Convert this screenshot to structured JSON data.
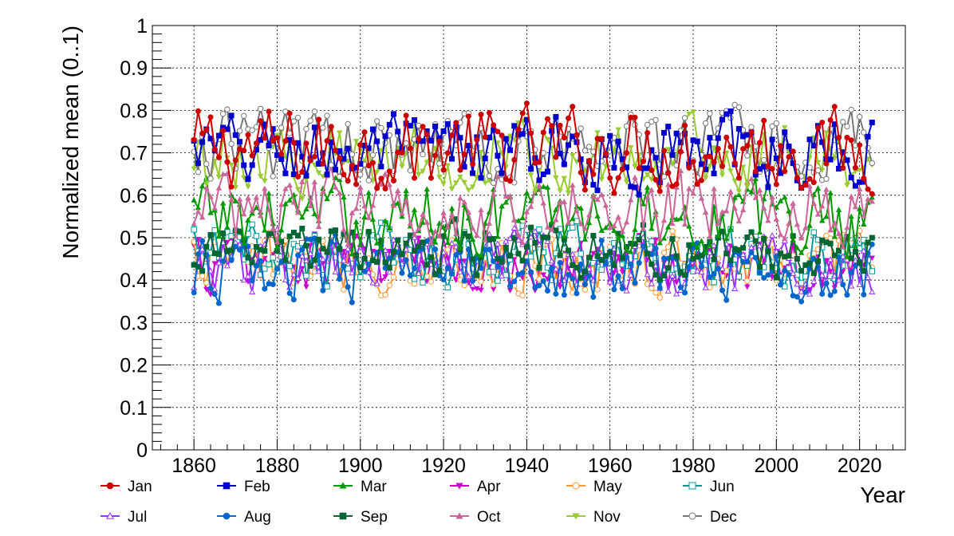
{
  "chart_data": {
    "type": "line",
    "title": "",
    "xlabel": "Year",
    "ylabel": "Normalized mean (0..1)",
    "xlim": [
      1850,
      2031
    ],
    "ylim": [
      0,
      1
    ],
    "x_start": 1860,
    "x_end": 2023,
    "x_ticks": [
      "1860",
      "1880",
      "1900",
      "1920",
      "1940",
      "1960",
      "1980",
      "2000",
      "2020"
    ],
    "y_ticks": [
      "0",
      "0.1",
      "0.2",
      "0.3",
      "0.4",
      "0.5",
      "0.6",
      "0.7",
      "0.8",
      "0.9",
      "1"
    ],
    "grid": true,
    "legend_placement": "bottom",
    "series": [
      {
        "name": "Jan",
        "color": "#cc0000",
        "marker": "circle-filled",
        "mean": 0.71,
        "amp": 0.08,
        "min": 0.5,
        "max": 0.85
      },
      {
        "name": "Feb",
        "color": "#0000cc",
        "marker": "square-filled",
        "mean": 0.7,
        "amp": 0.07,
        "min": 0.44,
        "max": 0.81
      },
      {
        "name": "Mar",
        "color": "#009900",
        "marker": "triangle-filled",
        "mean": 0.55,
        "amp": 0.07,
        "min": 0.4,
        "max": 0.7
      },
      {
        "name": "Apr",
        "color": "#cc00cc",
        "marker": "triangle-down-filled",
        "mean": 0.44,
        "amp": 0.06,
        "min": 0.29,
        "max": 0.56
      },
      {
        "name": "May",
        "color": "#ff9933",
        "marker": "circle-open",
        "mean": 0.44,
        "amp": 0.06,
        "min": 0.31,
        "max": 0.57
      },
      {
        "name": "Jun",
        "color": "#009999",
        "marker": "square-open",
        "mean": 0.46,
        "amp": 0.06,
        "min": 0.29,
        "max": 0.63
      },
      {
        "name": "Jul",
        "color": "#9933ff",
        "marker": "triangle-open",
        "mean": 0.44,
        "amp": 0.06,
        "min": 0.31,
        "max": 0.58
      },
      {
        "name": "Aug",
        "color": "#0066cc",
        "marker": "circle-filled",
        "mean": 0.42,
        "amp": 0.06,
        "min": 0.27,
        "max": 0.55
      },
      {
        "name": "Sep",
        "color": "#006633",
        "marker": "square-filled",
        "mean": 0.47,
        "amp": 0.05,
        "min": 0.34,
        "max": 0.6
      },
      {
        "name": "Oct",
        "color": "#cc6699",
        "marker": "triangle-filled",
        "mean": 0.57,
        "amp": 0.07,
        "min": 0.4,
        "max": 0.72
      },
      {
        "name": "Nov",
        "color": "#99cc33",
        "marker": "triangle-down-filled",
        "mean": 0.69,
        "amp": 0.07,
        "min": 0.55,
        "max": 0.82
      },
      {
        "name": "Dec",
        "color": "#777777",
        "marker": "circle-open",
        "mean": 0.72,
        "amp": 0.07,
        "min": 0.53,
        "max": 0.87
      }
    ]
  }
}
